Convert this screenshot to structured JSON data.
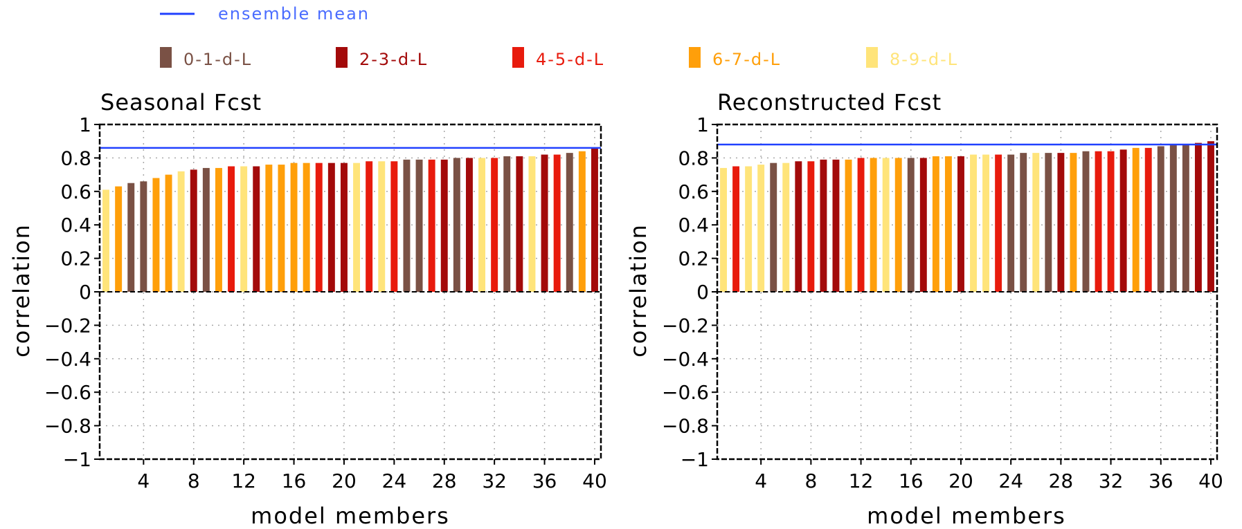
{
  "legend": {
    "mean_label": "ensemble mean",
    "mean_color": "#2040ff",
    "items": [
      {
        "label": "0-1-d-L",
        "color": "#7a5145"
      },
      {
        "label": "2-3-d-L",
        "color": "#a30a0a"
      },
      {
        "label": "4-5-d-L",
        "color": "#e81b0d"
      },
      {
        "label": "6-7-d-L",
        "color": "#ff9f0a"
      },
      {
        "label": "8-9-d-L",
        "color": "#ffe47a"
      }
    ]
  },
  "chart_data": [
    {
      "type": "bar",
      "title": "Seasonal Fcst",
      "xlabel": "model members",
      "ylabel": "correlation",
      "xlim": [
        0.5,
        40.5
      ],
      "ylim": [
        -1,
        1
      ],
      "xticks": [
        "4",
        "8",
        "12",
        "16",
        "20",
        "24",
        "28",
        "32",
        "36",
        "40"
      ],
      "yticks": [
        "1",
        "0.8",
        "0.6",
        "0.4",
        "0.2",
        "0",
        "−0.2",
        "−0.4",
        "−0.6",
        "−0.8",
        "−1"
      ],
      "grid": true,
      "ensemble_mean": 0.86,
      "categories": [
        "1",
        "2",
        "3",
        "4",
        "5",
        "6",
        "7",
        "8",
        "9",
        "10",
        "11",
        "12",
        "13",
        "14",
        "15",
        "16",
        "17",
        "18",
        "19",
        "20",
        "21",
        "22",
        "23",
        "24",
        "25",
        "26",
        "27",
        "28",
        "29",
        "30",
        "31",
        "32",
        "33",
        "34",
        "35",
        "36",
        "37",
        "38",
        "39",
        "40"
      ],
      "values": [
        0.61,
        0.63,
        0.65,
        0.66,
        0.68,
        0.7,
        0.72,
        0.73,
        0.74,
        0.74,
        0.75,
        0.75,
        0.75,
        0.76,
        0.76,
        0.77,
        0.77,
        0.77,
        0.77,
        0.77,
        0.77,
        0.78,
        0.78,
        0.78,
        0.79,
        0.79,
        0.79,
        0.79,
        0.8,
        0.8,
        0.8,
        0.8,
        0.81,
        0.81,
        0.81,
        0.82,
        0.82,
        0.83,
        0.84,
        0.86
      ],
      "groups": [
        4,
        3,
        0,
        0,
        3,
        3,
        4,
        1,
        0,
        3,
        2,
        4,
        1,
        3,
        3,
        3,
        3,
        2,
        1,
        1,
        4,
        2,
        4,
        2,
        0,
        0,
        2,
        1,
        0,
        1,
        4,
        2,
        0,
        1,
        4,
        1,
        2,
        0,
        3,
        1
      ]
    },
    {
      "type": "bar",
      "title": "Reconstructed Fcst",
      "xlabel": "model members",
      "ylabel": "correlation",
      "xlim": [
        0.5,
        40.5
      ],
      "ylim": [
        -1,
        1
      ],
      "xticks": [
        "4",
        "8",
        "12",
        "16",
        "20",
        "24",
        "28",
        "32",
        "36",
        "40"
      ],
      "yticks": [
        "1",
        "0.8",
        "0.6",
        "0.4",
        "0.2",
        "0",
        "−0.2",
        "−0.4",
        "−0.6",
        "−0.8",
        "−1"
      ],
      "grid": true,
      "ensemble_mean": 0.88,
      "categories": [
        "1",
        "2",
        "3",
        "4",
        "5",
        "6",
        "7",
        "8",
        "9",
        "10",
        "11",
        "12",
        "13",
        "14",
        "15",
        "16",
        "17",
        "18",
        "19",
        "20",
        "21",
        "22",
        "23",
        "24",
        "25",
        "26",
        "27",
        "28",
        "29",
        "30",
        "31",
        "32",
        "33",
        "34",
        "35",
        "36",
        "37",
        "38",
        "39",
        "40"
      ],
      "values": [
        0.74,
        0.75,
        0.75,
        0.76,
        0.77,
        0.77,
        0.78,
        0.78,
        0.79,
        0.79,
        0.79,
        0.8,
        0.8,
        0.8,
        0.8,
        0.8,
        0.8,
        0.81,
        0.81,
        0.81,
        0.82,
        0.82,
        0.82,
        0.82,
        0.83,
        0.83,
        0.83,
        0.83,
        0.83,
        0.84,
        0.84,
        0.84,
        0.85,
        0.86,
        0.86,
        0.87,
        0.88,
        0.88,
        0.89,
        0.9
      ],
      "groups": [
        4,
        2,
        4,
        4,
        0,
        4,
        1,
        2,
        1,
        1,
        3,
        2,
        3,
        4,
        3,
        0,
        1,
        3,
        3,
        1,
        4,
        4,
        2,
        0,
        0,
        4,
        0,
        1,
        3,
        0,
        2,
        2,
        1,
        3,
        2,
        0,
        0,
        0,
        1,
        1
      ]
    }
  ]
}
